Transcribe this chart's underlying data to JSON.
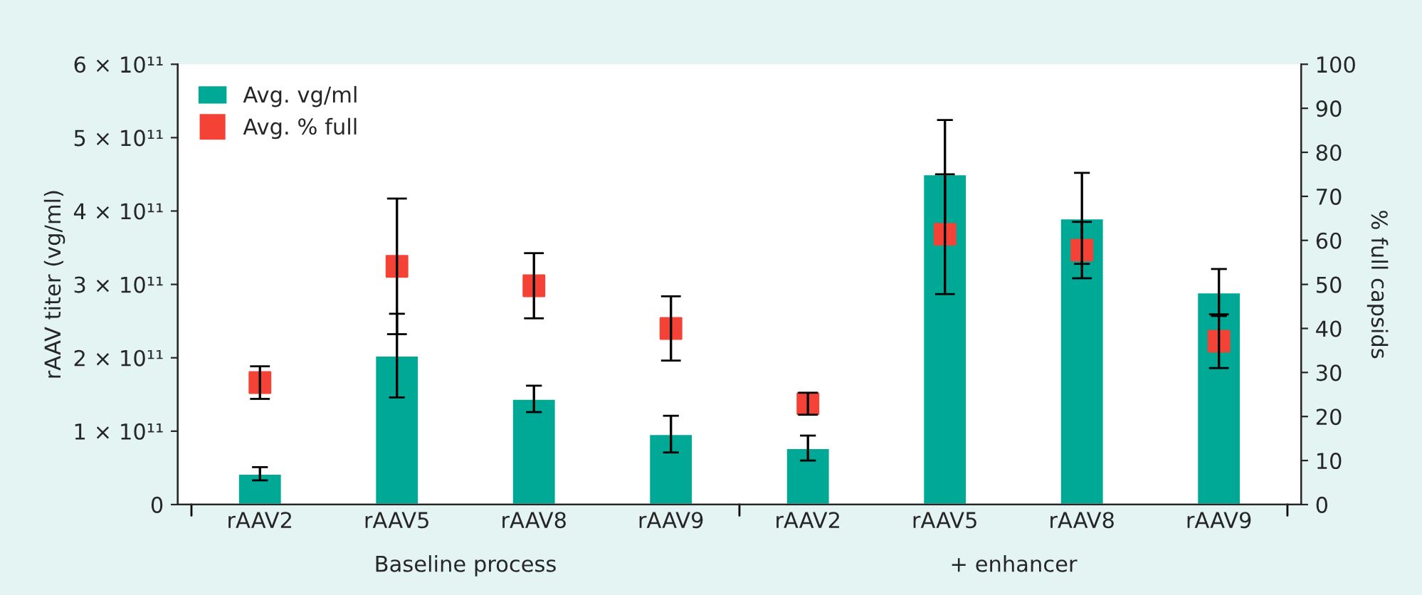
{
  "chart_data": {
    "type": "bar",
    "categories": [
      "rAAV2",
      "rAAV5",
      "rAAV8",
      "rAAV9",
      "rAAV2",
      "rAAV5",
      "rAAV8",
      "rAAV9"
    ],
    "ylabel": "rAAV titer (vg/ml)",
    "y2label": "% full capsids",
    "annotations": [
      "Baseline process",
      "+ enhancer"
    ],
    "series": [
      {
        "name": "Avg. vg/ml",
        "color": "#00a896",
        "values": [
          42000000000.0,
          203000000000.0,
          144000000000.0,
          96000000000.0,
          77000000000.0,
          450000000000.0,
          390000000000.0,
          289000000000.0
        ],
        "errors": [
          9000000000.0,
          57000000000.0,
          18000000000.0,
          25000000000.0,
          17000000000.0,
          74000000000.0,
          62000000000.0,
          32000000000.0
        ]
      },
      {
        "name": "Avg. % full",
        "type": "scatter",
        "axis": "y2",
        "marker": "square",
        "color": "#f44336",
        "values": [
          27.7,
          54.1,
          49.7,
          40.0,
          22.9,
          61.4,
          57.8,
          37.1
        ],
        "errors": [
          3.7,
          15.4,
          7.4,
          7.3,
          2.5,
          13.6,
          6.4,
          6.1
        ]
      }
    ],
    "ylim": [
      0,
      600000000000.0
    ],
    "yticks": [
      {
        "value": 0,
        "label": "0"
      },
      {
        "value": 100000000000.0,
        "label": "1 × 10¹¹"
      },
      {
        "value": 200000000000.0,
        "label": "2 × 10¹¹"
      },
      {
        "value": 300000000000.0,
        "label": "3 × 10¹¹"
      },
      {
        "value": 400000000000.0,
        "label": "4 × 10¹¹"
      },
      {
        "value": 500000000000.0,
        "label": "5 × 10¹¹"
      },
      {
        "value": 600000000000.0,
        "label": "6 × 10¹¹"
      }
    ],
    "y2lim": [
      0,
      100
    ],
    "y2ticks": [
      0,
      10,
      20,
      30,
      40,
      50,
      60,
      70,
      80,
      90,
      100
    ],
    "grid": false,
    "legend": "top left"
  }
}
